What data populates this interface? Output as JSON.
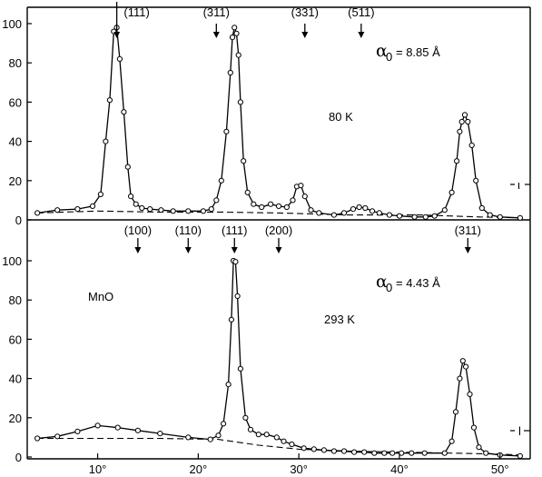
{
  "chart_data": [
    {
      "type": "line",
      "temperature_label": "80 K",
      "lattice_symbol": "α",
      "lattice_subscript": "0",
      "lattice_value": "= 8.85 Å",
      "side_marker": "ι",
      "ylim": [
        0,
        100
      ],
      "xlim": [
        3,
        53
      ],
      "yticks": [
        0,
        20,
        40,
        60,
        80,
        100
      ],
      "peak_labels": [
        {
          "text": "(111)",
          "x": 11.9
        },
        {
          "text": "(311)",
          "x": 21.8
        },
        {
          "text": "(331)",
          "x": 30.6
        },
        {
          "text": "(511)",
          "x": 36.2
        }
      ],
      "background": [
        [
          4,
          3.5
        ],
        [
          10,
          4.5
        ],
        [
          16,
          4
        ],
        [
          22,
          4
        ],
        [
          28,
          3.5
        ],
        [
          35,
          2.5
        ],
        [
          42,
          2.5
        ],
        [
          48,
          1.5
        ],
        [
          52,
          1
        ]
      ],
      "series": [
        {
          "points": [
            [
              4,
              3.5
            ],
            [
              6,
              5
            ],
            [
              8,
              5.5
            ],
            [
              9.5,
              7
            ],
            [
              10.3,
              13
            ],
            [
              10.8,
              40
            ],
            [
              11.2,
              61
            ],
            [
              11.6,
              96
            ],
            [
              11.9,
              98
            ],
            [
              12.2,
              82
            ],
            [
              12.6,
              55
            ],
            [
              13,
              27
            ],
            [
              13.3,
              12
            ],
            [
              13.8,
              8
            ],
            [
              14.4,
              6
            ],
            [
              15.2,
              5.5
            ],
            [
              16.3,
              5
            ],
            [
              17.5,
              4.5
            ],
            [
              19,
              4.5
            ],
            [
              20.5,
              4.5
            ],
            [
              21.3,
              5.5
            ],
            [
              21.8,
              10
            ],
            [
              22.3,
              20
            ],
            [
              22.8,
              45
            ],
            [
              23.2,
              75
            ],
            [
              23.4,
              93
            ],
            [
              23.6,
              98
            ],
            [
              23.8,
              95
            ],
            [
              24,
              84
            ],
            [
              24.2,
              60
            ],
            [
              24.5,
              30
            ],
            [
              24.9,
              14
            ],
            [
              25.5,
              8
            ],
            [
              26.3,
              6.5
            ],
            [
              27.2,
              8
            ],
            [
              28,
              7
            ],
            [
              28.8,
              6.5
            ],
            [
              29.4,
              10
            ],
            [
              29.8,
              17
            ],
            [
              30.2,
              17.5
            ],
            [
              30.6,
              12
            ],
            [
              31.2,
              5
            ],
            [
              32,
              3.5
            ],
            [
              33.5,
              2.5
            ],
            [
              34.5,
              3.5
            ],
            [
              35.4,
              5.5
            ],
            [
              36,
              6.5
            ],
            [
              36.6,
              6
            ],
            [
              37.3,
              4.5
            ],
            [
              38,
              3.5
            ],
            [
              39,
              2.5
            ],
            [
              40,
              2
            ],
            [
              41.5,
              1.5
            ],
            [
              42.6,
              1.5
            ],
            [
              43.5,
              2
            ],
            [
              44.5,
              5
            ],
            [
              45.2,
              14
            ],
            [
              45.7,
              30
            ],
            [
              46,
              45
            ],
            [
              46.2,
              50
            ],
            [
              46.5,
              53.5
            ],
            [
              46.8,
              50
            ],
            [
              47.2,
              38
            ],
            [
              47.6,
              20
            ],
            [
              48.2,
              6
            ],
            [
              49,
              2.5
            ],
            [
              50,
              1.5
            ],
            [
              52,
              1
            ]
          ]
        }
      ]
    },
    {
      "type": "line",
      "temperature_label": "293 K",
      "compound_label": "MnO",
      "lattice_symbol": "α",
      "lattice_subscript": "0",
      "lattice_value": "= 4.43 Å",
      "side_marker": "l",
      "ylim": [
        0,
        100
      ],
      "xlim": [
        3,
        53
      ],
      "yticks": [
        0,
        20,
        40,
        60,
        80,
        100
      ],
      "xticks": [
        10,
        20,
        30,
        40,
        50
      ],
      "xtick_labels": [
        "10°",
        "20°",
        "30°",
        "40°",
        "50°"
      ],
      "peak_labels": [
        {
          "text": "(100)",
          "x": 14
        },
        {
          "text": "(110)",
          "x": 19
        },
        {
          "text": "(111)",
          "x": 23.6
        },
        {
          "text": "(200)",
          "x": 28
        },
        {
          "text": "(311)",
          "x": 46.8
        }
      ],
      "background": [
        [
          4,
          9.5
        ],
        [
          10,
          9.5
        ],
        [
          16,
          9.5
        ],
        [
          22,
          9
        ],
        [
          26,
          6
        ],
        [
          30,
          4
        ],
        [
          35,
          3
        ],
        [
          40,
          2.5
        ],
        [
          45,
          2
        ],
        [
          50,
          1.5
        ],
        [
          52,
          1
        ]
      ],
      "series": [
        {
          "points": [
            [
              4,
              9.5
            ],
            [
              6,
              10.5
            ],
            [
              8,
              13
            ],
            [
              10,
              16
            ],
            [
              12,
              15
            ],
            [
              14,
              13.5
            ],
            [
              16.2,
              12
            ],
            [
              19,
              10
            ],
            [
              21.2,
              9
            ],
            [
              22,
              11
            ],
            [
              22.5,
              17
            ],
            [
              23,
              37
            ],
            [
              23.3,
              70
            ],
            [
              23.5,
              100
            ],
            [
              23.7,
              99.5
            ],
            [
              23.9,
              82
            ],
            [
              24.2,
              45
            ],
            [
              24.7,
              20
            ],
            [
              25.2,
              14
            ],
            [
              26,
              11.5
            ],
            [
              26.8,
              11.5
            ],
            [
              27.8,
              10
            ],
            [
              28.5,
              8
            ],
            [
              29.3,
              6.5
            ],
            [
              30.5,
              4.5
            ],
            [
              31.5,
              4
            ],
            [
              32.5,
              3.5
            ],
            [
              33.5,
              3
            ],
            [
              34.5,
              3
            ],
            [
              35.5,
              2.5
            ],
            [
              36.5,
              2.5
            ],
            [
              37.5,
              2
            ],
            [
              38.5,
              2
            ],
            [
              39.3,
              2
            ],
            [
              40.2,
              2
            ],
            [
              41.2,
              2
            ],
            [
              42.5,
              2
            ],
            [
              44.5,
              2
            ],
            [
              45.2,
              8
            ],
            [
              45.6,
              23
            ],
            [
              46,
              40
            ],
            [
              46.3,
              49
            ],
            [
              46.6,
              46
            ],
            [
              47,
              32
            ],
            [
              47.4,
              15
            ],
            [
              47.9,
              5
            ],
            [
              48.6,
              2
            ],
            [
              50,
              1
            ],
            [
              52,
              0.5
            ]
          ]
        }
      ]
    }
  ]
}
